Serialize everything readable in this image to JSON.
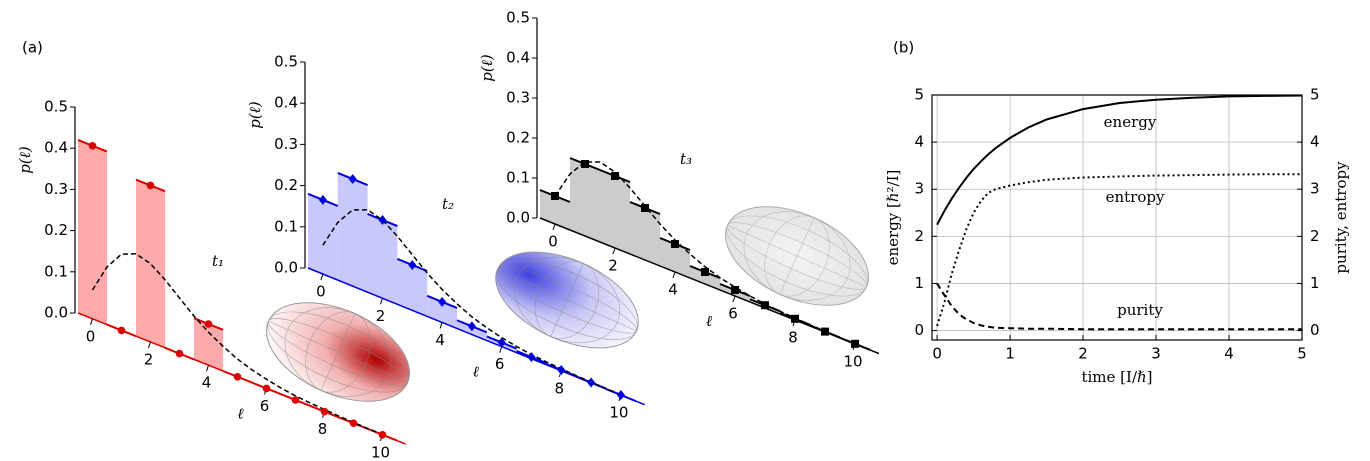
{
  "chart_data": [
    {
      "type": "bar",
      "panel_label": "(a)",
      "title": "t₁",
      "xlabel": "ℓ",
      "ylabel": "p(ℓ)",
      "x": [
        0,
        1,
        2,
        3,
        4,
        5,
        6,
        7,
        8,
        9,
        10
      ],
      "values": [
        0.42,
        0,
        0.38,
        0,
        0.1,
        0,
        0,
        0,
        0,
        0,
        0
      ],
      "fit_x": [
        0,
        0.5,
        1,
        1.5,
        2,
        2.5,
        3,
        3.5,
        4,
        4.5,
        5,
        5.5,
        6,
        6.5,
        7,
        7.5,
        8,
        8.5,
        9,
        9.5,
        10
      ],
      "fit_values": [
        0.07,
        0.14,
        0.185,
        0.2,
        0.19,
        0.165,
        0.135,
        0.105,
        0.08,
        0.06,
        0.043,
        0.031,
        0.022,
        0.015,
        0.01,
        0.007,
        0.005,
        0.003,
        0.002,
        0.001,
        0.001
      ],
      "color": "#dd0000",
      "fill_color": "#ffaaaa",
      "marker": "circle",
      "xlim": [
        -0.5,
        10.8
      ],
      "xticks": [
        0,
        2,
        4,
        6,
        8,
        10
      ],
      "ylim": [
        0,
        0.5
      ],
      "yticks": [
        {
          "value": 0,
          "label": "0.0"
        },
        0.1,
        0.2,
        0.3,
        0.4,
        0.5
      ]
    },
    {
      "type": "bar",
      "title": "t₂",
      "xlabel": "ℓ",
      "ylabel": "p(ℓ)",
      "x": [
        0,
        1,
        2,
        3,
        4,
        5,
        6,
        7,
        8,
        9,
        10
      ],
      "values": [
        0.18,
        0.26,
        0.19,
        0.11,
        0.05,
        0.02,
        0.01,
        0.004,
        0.002,
        0.001,
        0
      ],
      "fit_x": [
        0,
        0.5,
        1,
        1.5,
        2,
        2.5,
        3,
        3.5,
        4,
        4.5,
        5,
        5.5,
        6,
        6.5,
        7,
        7.5,
        8,
        8.5,
        9,
        9.5,
        10
      ],
      "fit_values": [
        0.07,
        0.14,
        0.185,
        0.2,
        0.19,
        0.165,
        0.135,
        0.105,
        0.08,
        0.06,
        0.043,
        0.031,
        0.022,
        0.015,
        0.01,
        0.007,
        0.005,
        0.003,
        0.002,
        0.001,
        0.001
      ],
      "color": "#0000dd",
      "fill_color": "#c8c8ff",
      "marker": "diamond",
      "xlim": [
        -0.5,
        10.8
      ],
      "xticks": [
        0,
        2,
        4,
        6,
        8,
        10
      ],
      "ylim": [
        0,
        0.5
      ],
      "yticks": [
        {
          "value": 0,
          "label": "0.0"
        },
        0.1,
        0.2,
        0.3,
        0.4,
        0.5
      ]
    },
    {
      "type": "bar",
      "title": "t₃",
      "xlabel": "ℓ",
      "ylabel": "p(ℓ)",
      "x": [
        0,
        1,
        2,
        3,
        4,
        5,
        6,
        7,
        8,
        9,
        10
      ],
      "values": [
        0.07,
        0.18,
        0.18,
        0.13,
        0.07,
        0.03,
        0.015,
        0.007,
        0.003,
        0.001,
        0.0005
      ],
      "fit_x": [
        0,
        0.5,
        1,
        1.5,
        2,
        2.5,
        3,
        3.5,
        4,
        4.5,
        5,
        5.5,
        6,
        6.5,
        7,
        7.5,
        8,
        8.5,
        9,
        9.5,
        10
      ],
      "fit_values": [
        0.07,
        0.14,
        0.185,
        0.2,
        0.19,
        0.165,
        0.135,
        0.105,
        0.08,
        0.06,
        0.043,
        0.031,
        0.022,
        0.015,
        0.01,
        0.007,
        0.005,
        0.003,
        0.002,
        0.001,
        0.001
      ],
      "color": "#000000",
      "fill_color": "#cccccc",
      "marker": "square",
      "xlim": [
        -0.5,
        10.8
      ],
      "xticks": [
        0,
        2,
        4,
        6,
        8,
        10
      ],
      "ylim": [
        0,
        0.5
      ],
      "yticks": [
        {
          "value": 0,
          "label": "0.0"
        },
        0.1,
        0.2,
        0.3,
        0.4,
        0.5
      ]
    },
    {
      "type": "line",
      "panel_label": "(b)",
      "xlabel": "time [I/ℏ]",
      "ylabel": "energy [ℏ²/I]",
      "y2label": "purity, entropy",
      "x": [
        0,
        0.1,
        0.2,
        0.3,
        0.4,
        0.5,
        0.6,
        0.7,
        0.8,
        1,
        1.25,
        1.5,
        2,
        2.5,
        3,
        3.5,
        4,
        4.5,
        5
      ],
      "series": [
        {
          "name": "energy",
          "color": "#000000",
          "dash": "solid",
          "values": [
            2.25,
            2.54,
            2.8,
            3.03,
            3.24,
            3.43,
            3.59,
            3.74,
            3.87,
            4.09,
            4.31,
            4.48,
            4.7,
            4.83,
            4.9,
            4.94,
            4.97,
            4.98,
            4.99
          ]
        },
        {
          "name": "entropy",
          "color": "#000000",
          "dash": "dotted",
          "axis": "y2",
          "values": [
            0.1,
            0.6,
            1.2,
            1.7,
            2.15,
            2.5,
            2.75,
            2.92,
            3.0,
            3.08,
            3.15,
            3.2,
            3.25,
            3.27,
            3.29,
            3.3,
            3.31,
            3.32,
            3.32
          ]
        },
        {
          "name": "purity",
          "color": "#000000",
          "dash": "dashed",
          "axis": "y2",
          "values": [
            1,
            0.75,
            0.52,
            0.35,
            0.24,
            0.16,
            0.11,
            0.08,
            0.06,
            0.05,
            0.04,
            0.04,
            0.03,
            0.03,
            0.03,
            0.03,
            0.03,
            0.03,
            0.03
          ]
        }
      ],
      "xlim": [
        -0.07,
        5
      ],
      "xticks": [
        0,
        1,
        2,
        3,
        4,
        5
      ],
      "ylim": [
        -0.2,
        5
      ],
      "yticks": [
        0,
        1,
        2,
        3,
        4,
        5
      ],
      "y2lim": [
        -0.2,
        5
      ],
      "y2ticks": [
        0,
        1,
        2,
        3,
        4,
        5
      ],
      "grid": true
    }
  ]
}
